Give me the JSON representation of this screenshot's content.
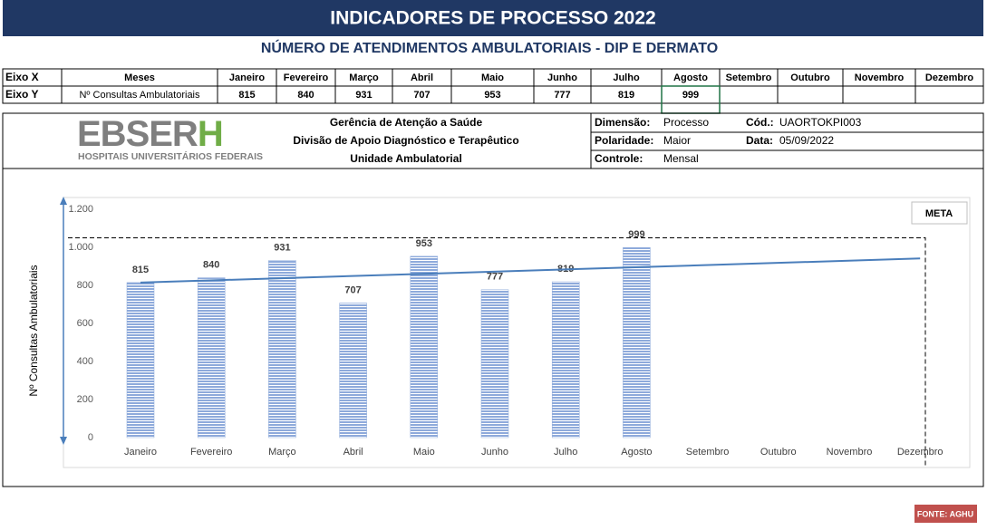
{
  "header": {
    "title": "INDICADORES DE PROCESSO 2022",
    "subtitle": "NÚMERO DE ATENDIMENTOS AMBULATORIAIS - DIP E DERMATO"
  },
  "table": {
    "x_header": "Eixo X",
    "x_label": "Meses",
    "y_header": "Eixo Y",
    "y_label": "Nº Consultas Ambulatoriais"
  },
  "info": {
    "logo_main": "EBSER",
    "logo_accent": "H",
    "logo_subtitle": "HOSPITAIS UNIVERSITÁRIOS FEDERAIS",
    "lines": [
      "Gerência de Atenção a Saúde",
      "Divisão de Apoio Diagnóstico e Terapêutico",
      "Unidade Ambulatorial"
    ],
    "dimensao_label": "Dimensão:",
    "dimensao": "Processo",
    "cod_label": "Cód.:",
    "cod": "UAORTOKPI003",
    "polaridade_label": "Polaridade:",
    "polaridade": "Maior",
    "data_label": "Data:",
    "data": "05/09/2022",
    "controle_label": "Controle:",
    "controle": "Mensal"
  },
  "chart_data": {
    "type": "bar",
    "y_label": "Nº Consultas Ambulatoriais",
    "categories": [
      "Janeiro",
      "Fevereiro",
      "Março",
      "Abril",
      "Maio",
      "Junho",
      "Julho",
      "Agosto",
      "Setembro",
      "Outubro",
      "Novembro",
      "Dezembro"
    ],
    "values": [
      815,
      840,
      931,
      707,
      953,
      777,
      819,
      999,
      null,
      null,
      null,
      null
    ],
    "color": "#8EAADB",
    "ylim": [
      0,
      1200
    ],
    "yticks": [
      0,
      200,
      400,
      600,
      800,
      {
        "value": 1000,
        "label": "1.000"
      },
      {
        "value": 1200,
        "label": "1.200"
      }
    ],
    "trendline": {
      "type": "linear",
      "color": "#4A7EBB"
    },
    "meta": {
      "label": "META",
      "value": 1050
    }
  },
  "footer": {
    "source": "FONTE: AGHU"
  }
}
